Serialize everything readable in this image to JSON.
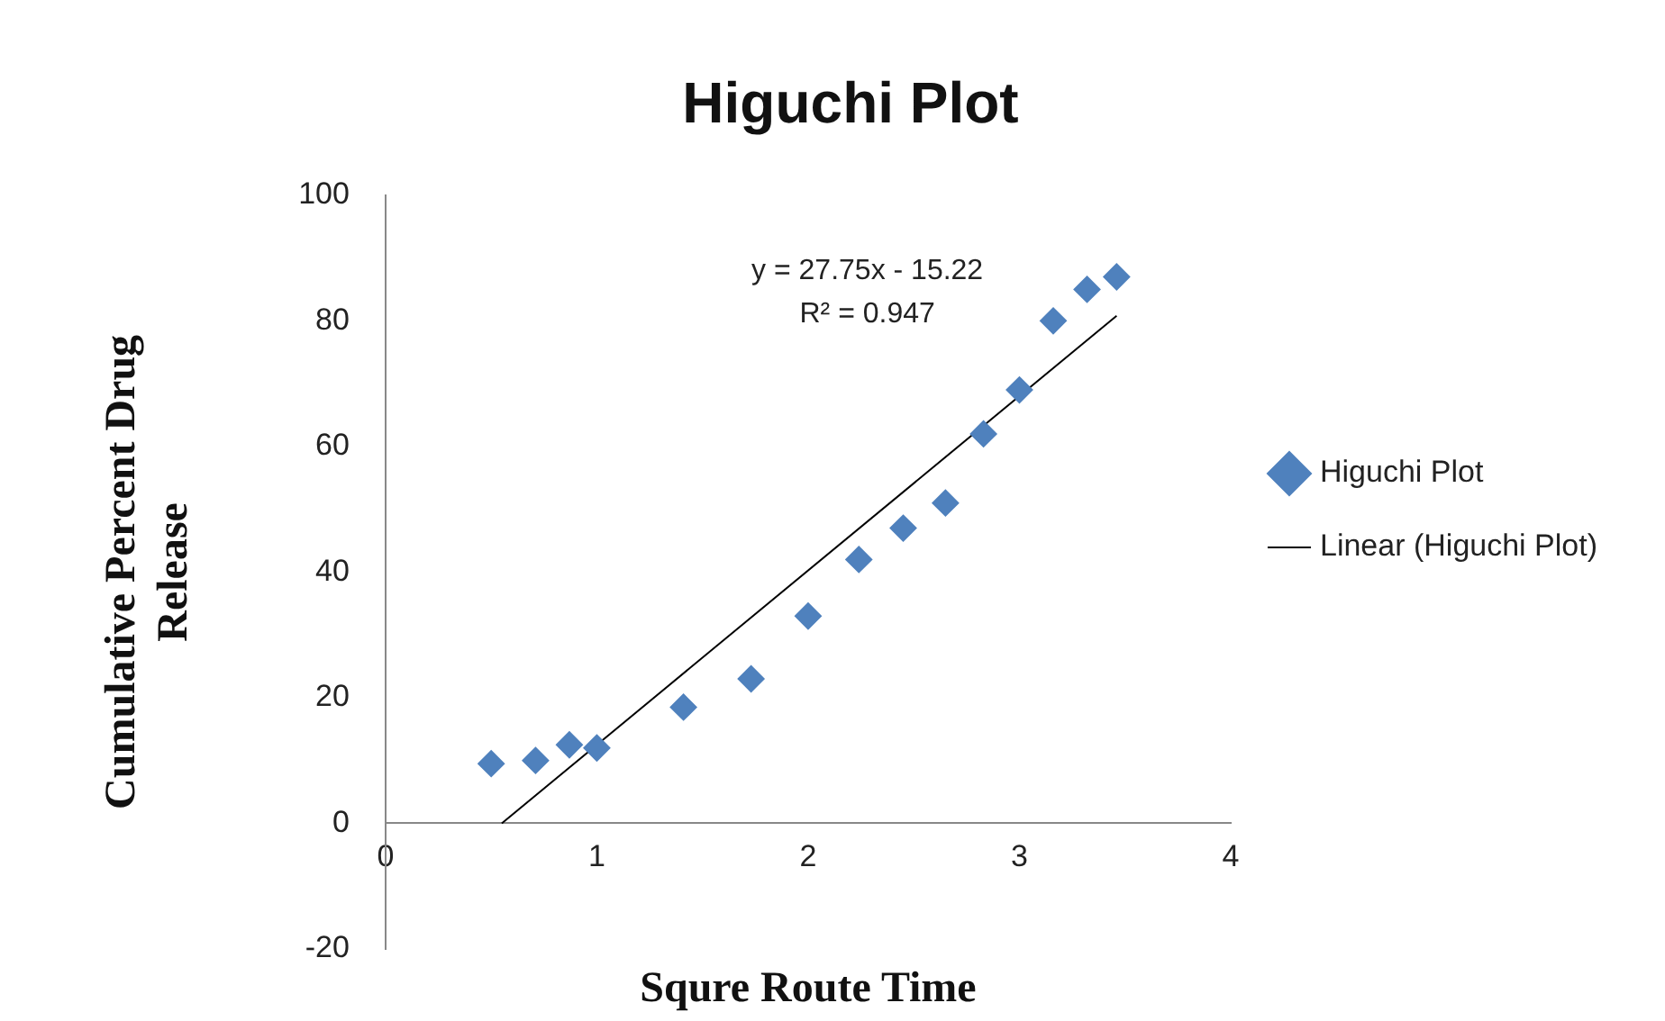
{
  "chart_data": {
    "type": "scatter",
    "title": "Higuchi Plot",
    "xlabel": "Squre Route Time",
    "ylabel": "Cumulative Percent Drug Release",
    "xlim": [
      0,
      4
    ],
    "xticks": [
      0,
      1,
      2,
      3,
      4
    ],
    "ylim": [
      -20,
      100
    ],
    "yticks": [
      -20,
      0,
      20,
      40,
      60,
      80,
      100
    ],
    "grid": false,
    "legend": "right",
    "series": [
      {
        "name": "Higuchi Plot",
        "type": "scatter",
        "marker": "diamond",
        "color": "#4f81bd",
        "x": [
          0.5,
          0.71,
          0.87,
          1,
          1.41,
          1.73,
          2,
          2.24,
          2.45,
          2.65,
          2.83,
          3,
          3.16,
          3.32,
          3.46
        ],
        "values": [
          9.5,
          10,
          12.5,
          12,
          18.5,
          23,
          33,
          42,
          47,
          51,
          62,
          69,
          80,
          85,
          87
        ]
      },
      {
        "name": "Linear (Higuchi Plot)",
        "type": "line",
        "marker": "none",
        "color": "#000000",
        "line_style": "solid",
        "x": [
          0.55,
          3.46
        ],
        "values": [
          0,
          80.8
        ]
      }
    ],
    "annotations": [
      "y = 27.75x - 15.22",
      "R² = 0.947"
    ]
  }
}
